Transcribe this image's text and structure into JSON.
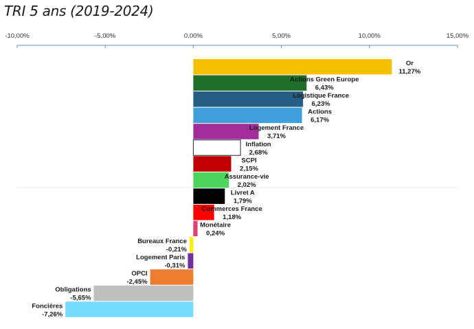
{
  "chart_data": {
    "type": "bar",
    "orientation": "horizontal",
    "title": "TRI 5 ans (2019-2024)",
    "xlim": [
      -10,
      15
    ],
    "x_ticks": [
      -10,
      -5,
      0,
      5,
      10,
      15
    ],
    "x_tick_labels": [
      "-10,00%",
      "-5,00%",
      "0,00%",
      "5,00%",
      "10,00%",
      "15,00%"
    ],
    "axis_position": "top",
    "categories": [
      "Or",
      "Actions Green Europe",
      "Logistique France",
      "Actions",
      "Logement France",
      "Inflation",
      "SCPI",
      "Assurance-vie",
      "Livret A",
      "Commerces France",
      "Monétaire",
      "Bureaux France",
      "Logement Paris",
      "OPCI",
      "Obligations",
      "Foncières"
    ],
    "values": [
      11.27,
      6.43,
      6.23,
      6.17,
      3.71,
      2.68,
      2.15,
      2.02,
      1.79,
      1.18,
      0.24,
      -0.21,
      -0.31,
      -2.45,
      -5.65,
      -7.26
    ],
    "value_labels": [
      "11,27%",
      "6,43%",
      "6,23%",
      "6,17%",
      "3,71%",
      "2,68%",
      "2,15%",
      "2,02%",
      "1,79%",
      "1,18%",
      "0,24%",
      "-0,21%",
      "-0,31%",
      "-2,45%",
      "-5,65%",
      "-7,26%"
    ],
    "colors": [
      "#F5C000",
      "#1F6E2A",
      "#235E82",
      "#3FA0DC",
      "#A02D9A",
      "#FFFFFF",
      "#C00000",
      "#4CD45C",
      "#000000",
      "#FF0000",
      "#E04070",
      "#FFF200",
      "#7030A0",
      "#ED7D31",
      "#BFBFBF",
      "#75DAFF"
    ]
  }
}
